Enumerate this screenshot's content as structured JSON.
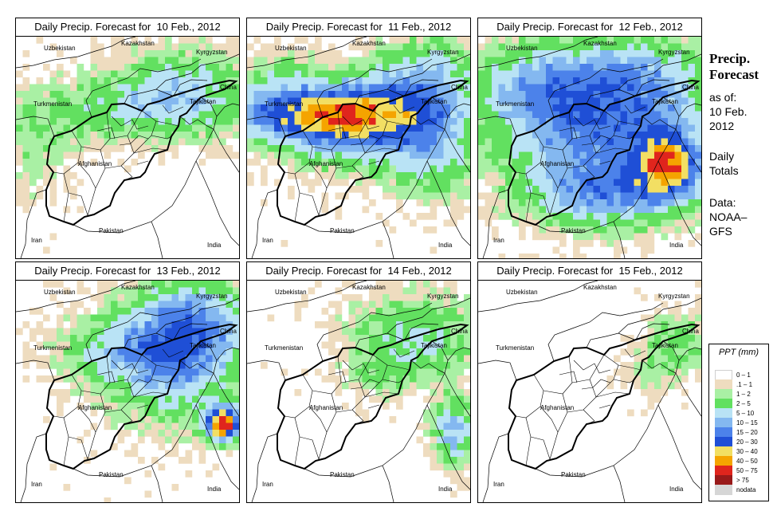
{
  "panels": [
    {
      "title": "Daily Precip. Forecast for  10 Feb., 2012"
    },
    {
      "title": "Daily Precip. Forecast for  11 Feb., 2012"
    },
    {
      "title": "Daily Precip. Forecast for  12 Feb., 2012"
    },
    {
      "title": "Daily Precip. Forecast for  13 Feb., 2012"
    },
    {
      "title": "Daily Precip. Forecast for  14 Feb., 2012"
    },
    {
      "title": "Daily Precip. Forecast for  15 Feb., 2012"
    }
  ],
  "countries": {
    "uzbekistan": "Uzbekistan",
    "kazakhstan": "Kazakhstan",
    "kyrgyzstan": "Kyrgyzstan",
    "china": "China",
    "turkmenistan": "Turkmenistan",
    "tajikistan": "Tajikistan",
    "afghanistan": "Afghanistan",
    "iran": "Iran",
    "pakistan": "Pakistan",
    "india": "India"
  },
  "sidebar": {
    "title_line1": "Precip.",
    "title_line2": "Forecast",
    "asof_line1": "as of:",
    "asof_line2": "10 Feb.",
    "asof_line3": "2012",
    "totals_line1": "Daily",
    "totals_line2": "Totals",
    "data_line1": "Data:",
    "data_line2": "NOAA–",
    "data_line3": "GFS"
  },
  "legend": {
    "title": "PPT (mm)",
    "items": [
      {
        "label": "0 – 1",
        "color": "#ffffff"
      },
      {
        "label": ".1 – 1",
        "color": "#eedcbf"
      },
      {
        "label": "1 – 2",
        "color": "#a9f0a4"
      },
      {
        "label": "2 – 5",
        "color": "#62e060"
      },
      {
        "label": "5 – 10",
        "color": "#b9e3f5"
      },
      {
        "label": "10 – 15",
        "color": "#84b8f0"
      },
      {
        "label": "15 – 20",
        "color": "#4c82ea"
      },
      {
        "label": "20 – 30",
        "color": "#1f4fd6"
      },
      {
        "label": "30 – 40",
        "color": "#f2df63"
      },
      {
        "label": "40 – 50",
        "color": "#f5a400"
      },
      {
        "label": "50 – 75",
        "color": "#e0251d"
      },
      {
        "label": "> 75",
        "color": "#991a1a"
      },
      {
        "label": "nodata",
        "color": "#d6d6d6"
      }
    ]
  }
}
